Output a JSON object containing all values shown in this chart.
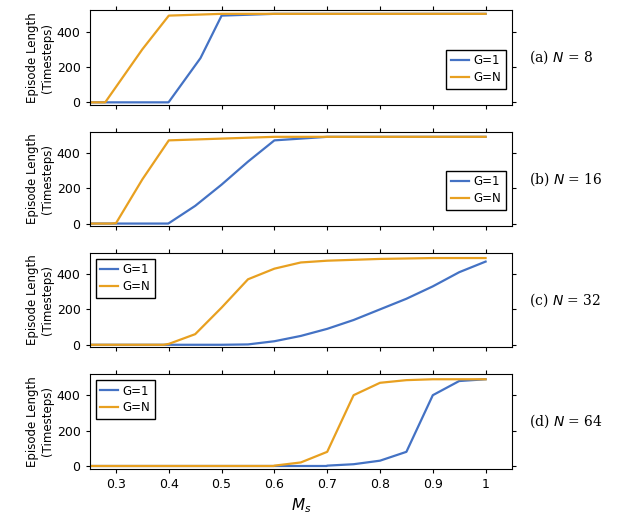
{
  "panels": [
    {
      "label": "(a)",
      "N_label": "N = 8",
      "legend_loc": "lower right",
      "G1": {
        "x": [
          0.25,
          0.399,
          0.4,
          0.46,
          0.5,
          0.6,
          0.7,
          0.8,
          0.9,
          1.0
        ],
        "y": [
          0,
          0,
          2,
          250,
          490,
          500,
          500,
          500,
          500,
          500
        ]
      },
      "GN": {
        "x": [
          0.25,
          0.279,
          0.28,
          0.35,
          0.4,
          0.5,
          0.6,
          0.7,
          0.8,
          0.9,
          1.0
        ],
        "y": [
          0,
          0,
          2,
          300,
          490,
          500,
          500,
          500,
          500,
          500,
          500
        ]
      }
    },
    {
      "label": "(b)",
      "N_label": "N = 16",
      "legend_loc": "lower right",
      "G1": {
        "x": [
          0.25,
          0.399,
          0.4,
          0.45,
          0.5,
          0.55,
          0.6,
          0.7,
          0.8,
          0.9,
          1.0
        ],
        "y": [
          0,
          0,
          2,
          100,
          220,
          350,
          470,
          490,
          490,
          490,
          490
        ]
      },
      "GN": {
        "x": [
          0.25,
          0.289,
          0.3,
          0.35,
          0.4,
          0.5,
          0.6,
          0.7,
          0.8,
          0.9,
          1.0
        ],
        "y": [
          0,
          0,
          2,
          250,
          470,
          480,
          490,
          490,
          490,
          490,
          490
        ]
      }
    },
    {
      "label": "(c)",
      "N_label": "N = 32",
      "legend_loc": "upper left",
      "G1": {
        "x": [
          0.25,
          0.399,
          0.4,
          0.5,
          0.55,
          0.6,
          0.65,
          0.7,
          0.75,
          0.8,
          0.85,
          0.9,
          0.95,
          1.0
        ],
        "y": [
          0,
          0,
          0,
          0,
          2,
          20,
          50,
          90,
          140,
          200,
          260,
          330,
          410,
          470
        ]
      },
      "GN": {
        "x": [
          0.25,
          0.39,
          0.4,
          0.45,
          0.5,
          0.55,
          0.6,
          0.65,
          0.7,
          0.75,
          0.8,
          0.9,
          1.0
        ],
        "y": [
          0,
          0,
          5,
          60,
          210,
          370,
          430,
          465,
          475,
          480,
          485,
          490,
          490
        ]
      }
    },
    {
      "label": "(d)",
      "N_label": "N = 64",
      "legend_loc": "upper left",
      "G1": {
        "x": [
          0.25,
          0.699,
          0.7,
          0.75,
          0.8,
          0.85,
          0.9,
          0.95,
          1.0
        ],
        "y": [
          0,
          0,
          2,
          10,
          30,
          80,
          400,
          480,
          490
        ]
      },
      "GN": {
        "x": [
          0.25,
          0.599,
          0.6,
          0.65,
          0.7,
          0.75,
          0.8,
          0.85,
          0.9,
          1.0
        ],
        "y": [
          0,
          0,
          2,
          20,
          80,
          400,
          470,
          485,
          490,
          490
        ]
      }
    }
  ],
  "color_G1": "#4472C4",
  "color_GN": "#E8A020",
  "xlabel": "$M_s$",
  "ylabel": "Episode Length\n(Timesteps)",
  "xlim": [
    0.25,
    1.05
  ],
  "ylim": [
    -15,
    520
  ],
  "xticks": [
    0.3,
    0.4,
    0.5,
    0.6,
    0.7,
    0.8,
    0.9,
    1.0
  ],
  "yticks": [
    0,
    200,
    400
  ],
  "linewidth": 1.6,
  "background_color": "#ffffff"
}
